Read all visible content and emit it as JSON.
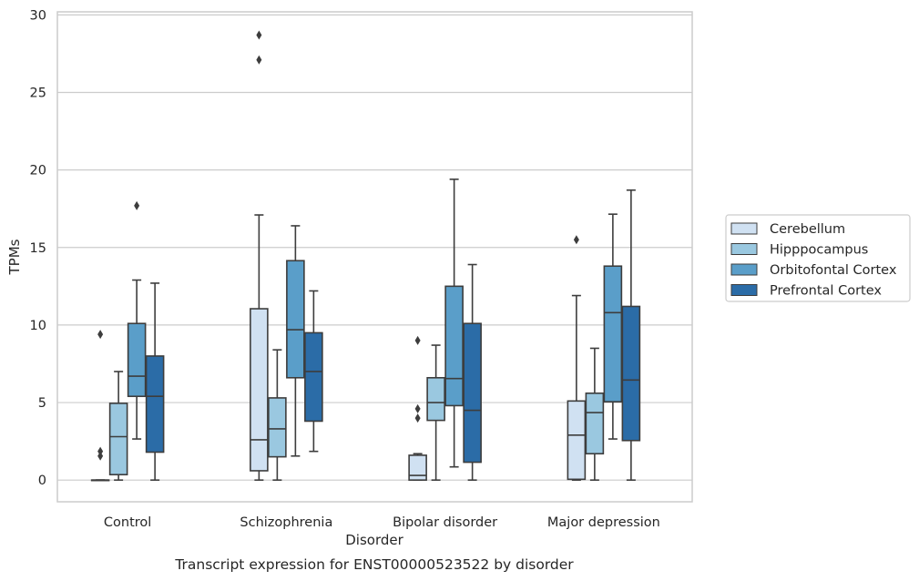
{
  "chart_data": {
    "type": "boxplot",
    "title": "",
    "caption": "Transcript expression for ENST00000523522 by disorder",
    "xlabel": "Disorder",
    "ylabel": "TPMs",
    "ylim": [
      -1.4,
      30.2
    ],
    "yticks": [
      0,
      5,
      10,
      15,
      20,
      25,
      30
    ],
    "grid": true,
    "legend_position": "right-outside",
    "categories": [
      "Control",
      "Schizophrenia",
      "Bipolar disorder",
      "Major depression"
    ],
    "series": [
      {
        "name": "Cerebellum",
        "color": "#d0e1f2",
        "boxes": [
          {
            "whisker_low": 0.0,
            "q1": 0.0,
            "median": 0.0,
            "q3": 0.0,
            "whisker_high": 0.0,
            "outliers": [
              9.4,
              1.85,
              1.55
            ]
          },
          {
            "whisker_low": 0.0,
            "q1": 0.6,
            "median": 2.6,
            "q3": 11.05,
            "whisker_high": 17.1,
            "outliers": [
              27.1,
              28.7
            ]
          },
          {
            "whisker_low": 0.0,
            "q1": 0.0,
            "median": 0.3,
            "q3": 1.6,
            "whisker_high": 1.7,
            "outliers": [
              9.0,
              4.6,
              4.0
            ]
          },
          {
            "whisker_low": 0.0,
            "q1": 0.05,
            "median": 2.9,
            "q3": 5.1,
            "whisker_high": 11.9,
            "outliers": [
              15.5
            ]
          }
        ]
      },
      {
        "name": "Hipppocampus",
        "color": "#9ac8e0",
        "boxes": [
          {
            "whisker_low": 0.0,
            "q1": 0.35,
            "median": 2.8,
            "q3": 4.95,
            "whisker_high": 7.0,
            "outliers": []
          },
          {
            "whisker_low": 0.0,
            "q1": 1.5,
            "median": 3.3,
            "q3": 5.3,
            "whisker_high": 8.4,
            "outliers": []
          },
          {
            "whisker_low": 0.0,
            "q1": 3.85,
            "median": 5.0,
            "q3": 6.6,
            "whisker_high": 8.7,
            "outliers": []
          },
          {
            "whisker_low": 0.0,
            "q1": 1.7,
            "median": 4.35,
            "q3": 5.6,
            "whisker_high": 8.5,
            "outliers": []
          }
        ]
      },
      {
        "name": "Orbitofontal Cortex",
        "color": "#5a9ec9",
        "boxes": [
          {
            "whisker_low": 2.65,
            "q1": 5.4,
            "median": 6.7,
            "q3": 10.1,
            "whisker_high": 12.9,
            "outliers": [
              17.7
            ]
          },
          {
            "whisker_low": 1.55,
            "q1": 6.6,
            "median": 9.7,
            "q3": 14.15,
            "whisker_high": 16.4,
            "outliers": []
          },
          {
            "whisker_low": 0.85,
            "q1": 4.8,
            "median": 6.55,
            "q3": 12.5,
            "whisker_high": 19.4,
            "outliers": []
          },
          {
            "whisker_low": 2.65,
            "q1": 5.05,
            "median": 10.8,
            "q3": 13.8,
            "whisker_high": 17.15,
            "outliers": []
          }
        ]
      },
      {
        "name": "Prefrontal Cortex",
        "color": "#2b6ca7",
        "boxes": [
          {
            "whisker_low": 0.0,
            "q1": 1.8,
            "median": 5.4,
            "q3": 8.0,
            "whisker_high": 12.7,
            "outliers": []
          },
          {
            "whisker_low": 1.85,
            "q1": 3.8,
            "median": 7.0,
            "q3": 9.5,
            "whisker_high": 12.2,
            "outliers": []
          },
          {
            "whisker_low": 0.0,
            "q1": 1.15,
            "median": 4.5,
            "q3": 10.1,
            "whisker_high": 13.9,
            "outliers": []
          },
          {
            "whisker_low": 0.0,
            "q1": 2.55,
            "median": 6.45,
            "q3": 11.2,
            "whisker_high": 18.7,
            "outliers": []
          }
        ]
      }
    ]
  }
}
